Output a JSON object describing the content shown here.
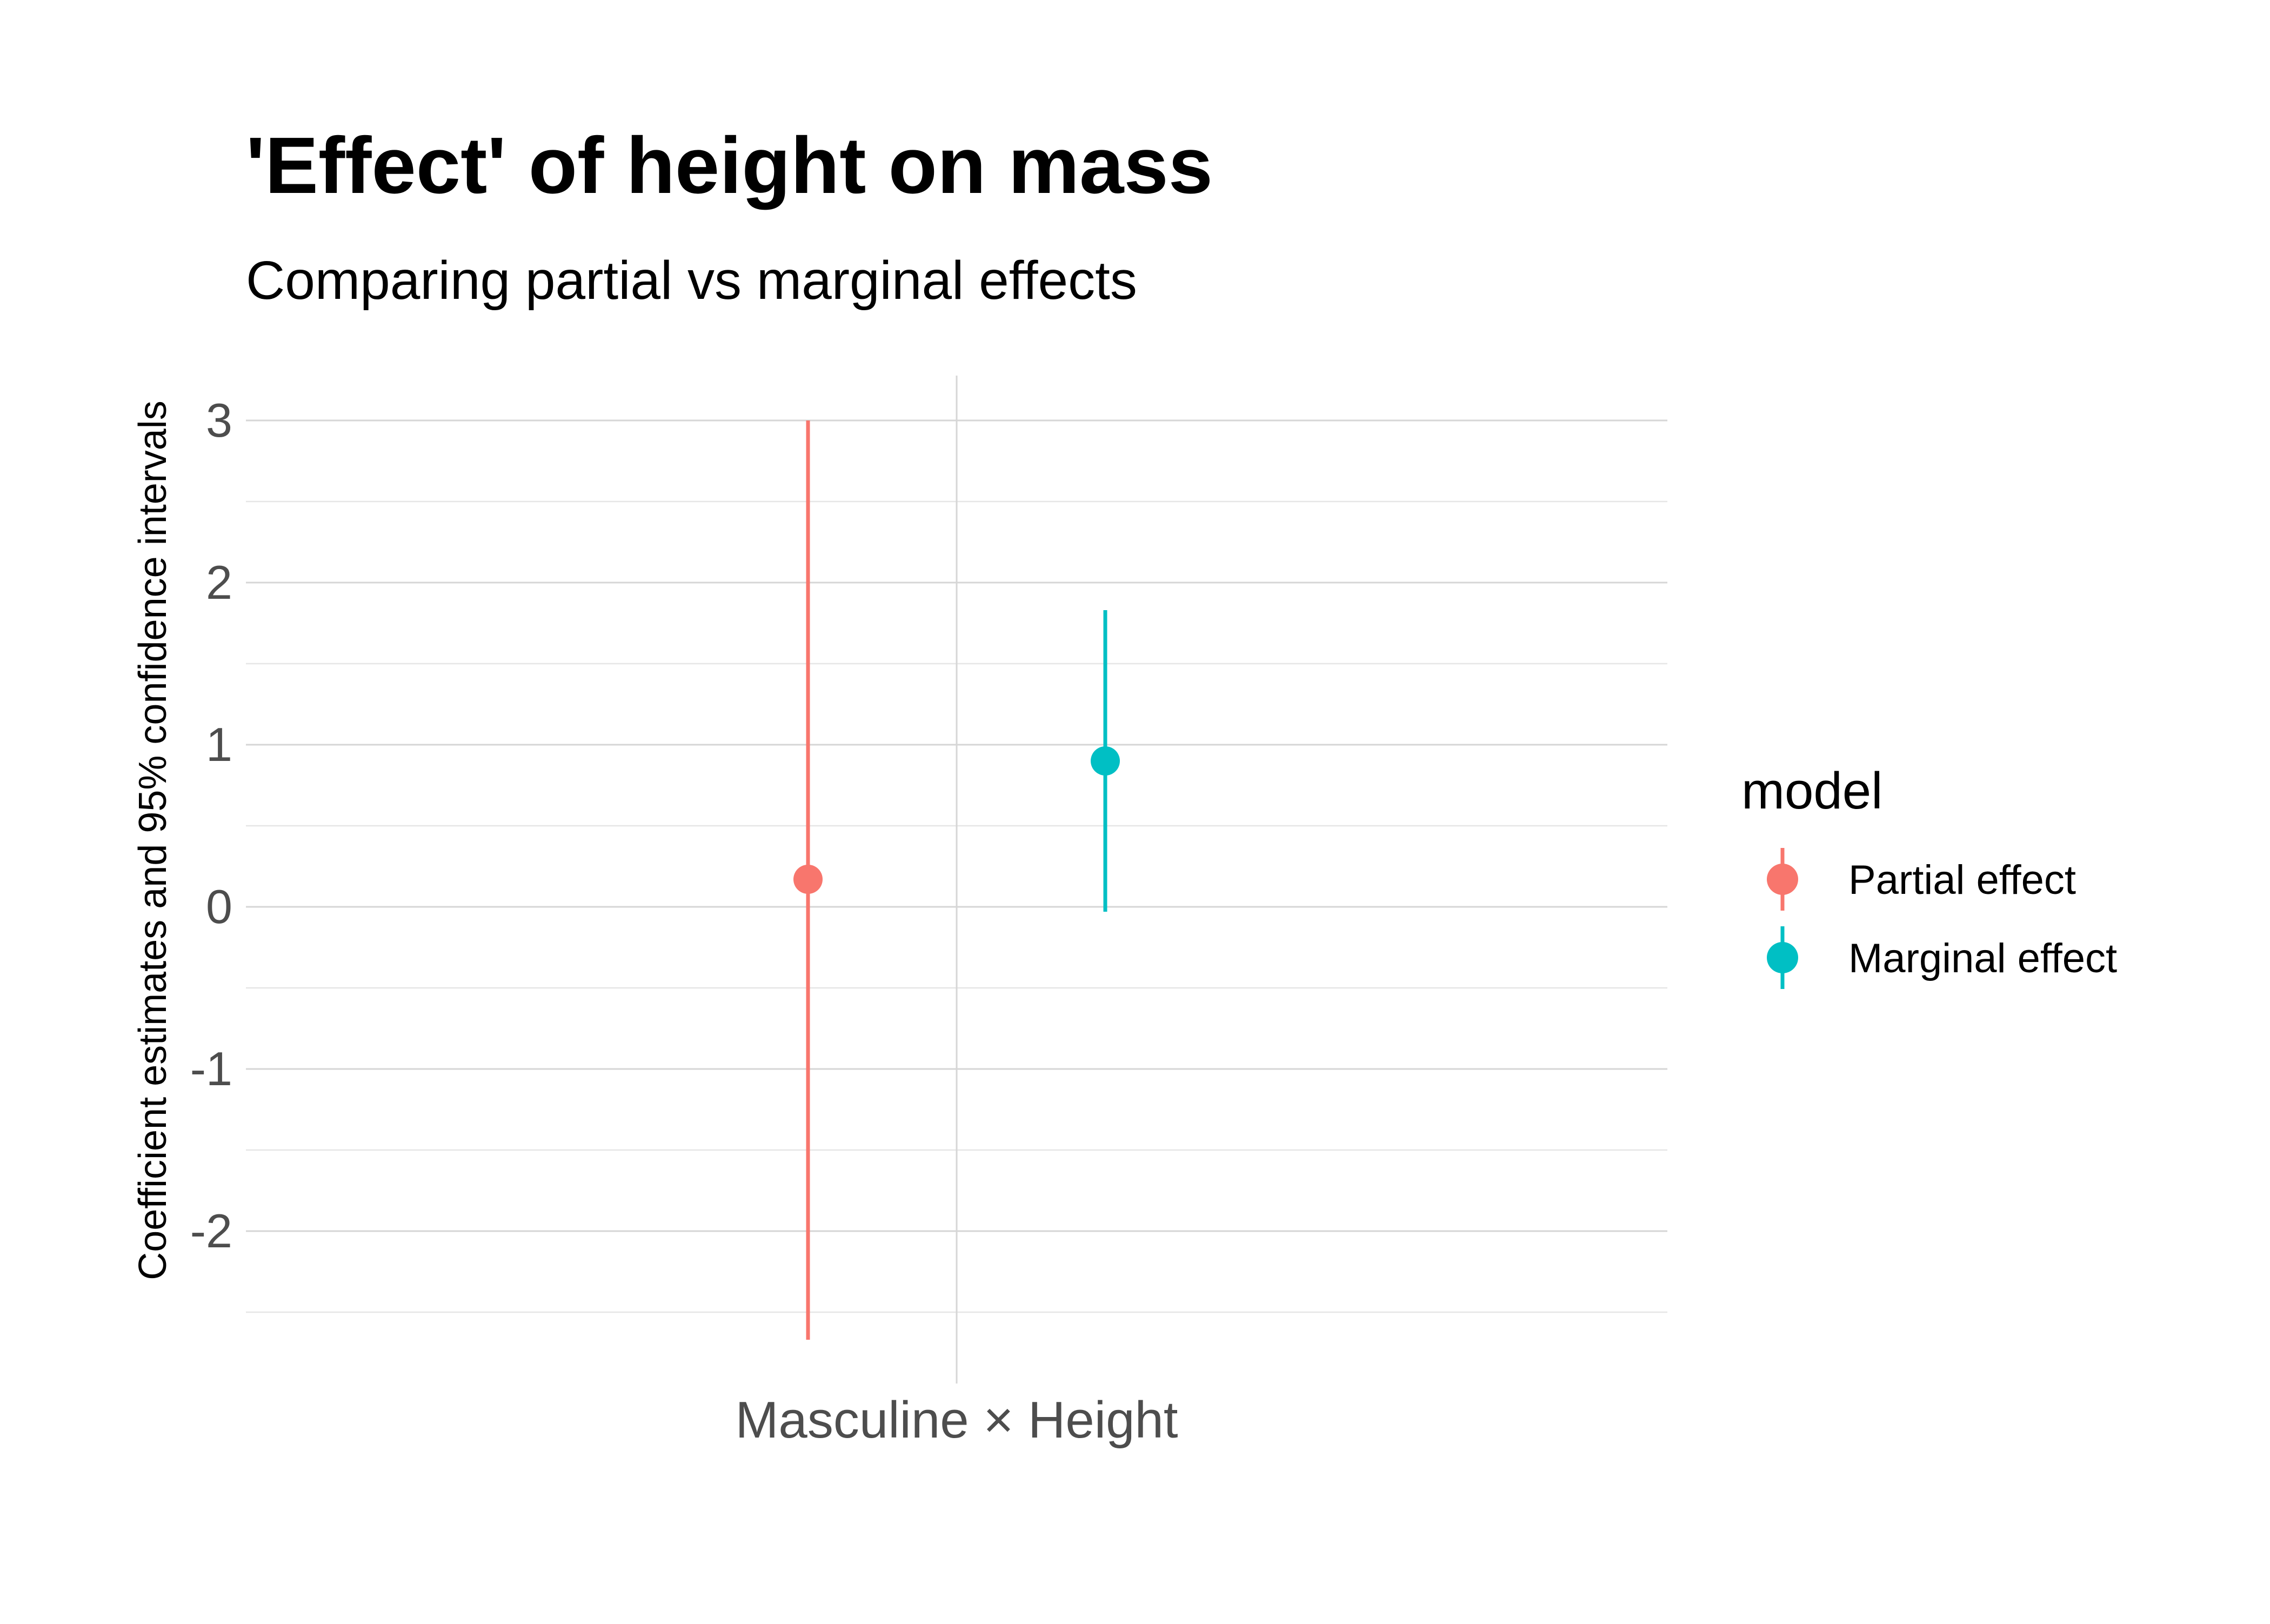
{
  "chart_data": {
    "type": "errorbar",
    "title": "'Effect' of height on mass",
    "subtitle": "Comparing partial vs marginal effects",
    "xlabel": "",
    "ylabel": "Coefficient estimates and 95% confidence intervals",
    "ylim": [
      -2.6,
      3.3
    ],
    "yticks": [
      3,
      2,
      1,
      0,
      -1,
      -2
    ],
    "ytick_labels": [
      "3",
      "2",
      "1",
      "0",
      "-1",
      "-2"
    ],
    "categories": [
      "Masculine × Height"
    ],
    "legend": {
      "title": "model",
      "position": "right"
    },
    "grid": true,
    "series": [
      {
        "name": "Partial effect",
        "color": "#F8766D",
        "estimate": 0.17,
        "ci_low": -2.67,
        "ci_high": 3.0
      },
      {
        "name": "Marginal effect",
        "color": "#00BFC4",
        "estimate": 0.9,
        "ci_low": -0.03,
        "ci_high": 1.83
      }
    ]
  }
}
